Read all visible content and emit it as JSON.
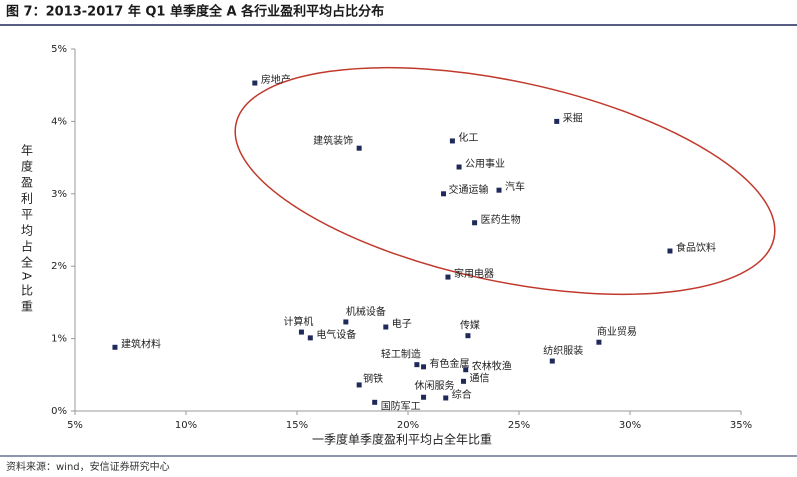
{
  "chart_data": {
    "type": "scatter",
    "title": "图 7：2013-2017 年 Q1 单季度全 A 各行业盈利平均占比分布",
    "x_label": "一季度单季度盈利平均占全年比重",
    "y_label": "年度盈利平均占全A比重",
    "source": "资料来源：wind，安信证券研究中心",
    "xlim": [
      5,
      35
    ],
    "xticks": [
      {
        "value": 5,
        "label": "5%"
      },
      {
        "value": 10,
        "label": "10%"
      },
      {
        "value": 15,
        "label": "15%"
      },
      {
        "value": 20,
        "label": "20%"
      },
      {
        "value": 25,
        "label": "25%"
      },
      {
        "value": 30,
        "label": "30%"
      },
      {
        "value": 35,
        "label": "35%"
      }
    ],
    "ylim": [
      0,
      5
    ],
    "yticks": [
      {
        "value": 0,
        "label": "0%"
      },
      {
        "value": 1,
        "label": "1%"
      },
      {
        "value": 2,
        "label": "2%"
      },
      {
        "value": 3,
        "label": "3%"
      },
      {
        "value": 4,
        "label": "4%"
      },
      {
        "value": 5,
        "label": "5%"
      }
    ],
    "series": [
      {
        "color": "#1f2a5a",
        "labels": [
          "房地产",
          "采掘",
          "建筑装饰",
          "化工",
          "公用事业",
          "交通运输",
          "汽车",
          "医药生物",
          "食品饮料",
          "家用电器",
          "计算机",
          "机械设备",
          "电子",
          "电气设备",
          "建筑材料",
          "传媒",
          "商业贸易",
          "纺织服装",
          "轻工制造",
          "有色金属",
          "农林牧渔",
          "钢铁",
          "通信",
          "休闲服务",
          "综合",
          "国防军工"
        ],
        "x": [
          13.1,
          26.7,
          17.8,
          22.0,
          22.3,
          21.6,
          24.1,
          23.0,
          31.8,
          21.8,
          15.2,
          17.2,
          19.0,
          15.6,
          6.8,
          22.7,
          28.6,
          26.5,
          20.4,
          20.7,
          22.6,
          17.8,
          22.5,
          20.7,
          21.7,
          18.5
        ],
        "values": [
          4.53,
          4.0,
          3.63,
          3.73,
          3.37,
          3.0,
          3.05,
          2.6,
          2.21,
          1.85,
          1.09,
          1.23,
          1.16,
          1.01,
          0.88,
          1.04,
          0.95,
          0.69,
          0.64,
          0.61,
          0.57,
          0.36,
          0.41,
          0.19,
          0.18,
          0.12
        ]
      }
    ]
  }
}
